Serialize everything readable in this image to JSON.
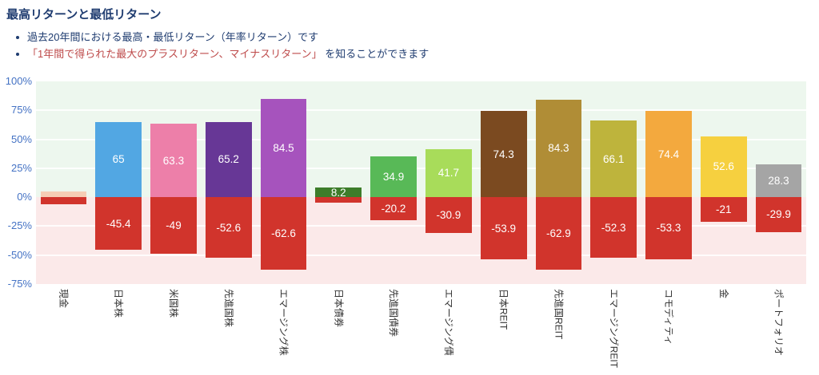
{
  "header": {
    "title": "最高リターンと最低リターン",
    "bullets": [
      {
        "text": "過去20年間における最高・最低リターン（年率リターン）です"
      },
      {
        "highlight": "「1年間で得られた最大のプラスリターン、マイナスリターン」",
        "rest": " を知ることができます"
      }
    ]
  },
  "colors": {
    "title": "#1f3c70",
    "bullet_text": "#1f3c70",
    "highlight_text": "#be4b4b",
    "axis_labels": "#4472c4",
    "x_labels": "#333333",
    "positive_background": "#edf7ee",
    "negative_background": "#fbe9e9",
    "negative_bar": "#d1342c"
  },
  "chart_data": {
    "type": "bar",
    "title": "最高リターンと最低リターン",
    "categories": [
      "現金",
      "日本株",
      "米国株",
      "先進国株",
      "エマージング株",
      "日本債券",
      "先進国債券",
      "エマージング債",
      "日本REIT",
      "先進国REIT",
      "エマージングREIT",
      "コモディティ",
      "金",
      "ポートフォリオ"
    ],
    "series": [
      {
        "name": "最高リターン",
        "values": [
          5,
          65,
          63.3,
          65.2,
          84.5,
          8.2,
          34.9,
          41.7,
          74.3,
          84.3,
          66.1,
          74.4,
          52.6,
          28.3
        ],
        "labels": [
          "",
          "65",
          "63.3",
          "65.2",
          "84.5",
          "8.2",
          "34.9",
          "41.7",
          "74.3",
          "84.3",
          "66.1",
          "74.4",
          "52.6",
          "28.3"
        ],
        "colors": [
          "#f6cdb5",
          "#52a7e3",
          "#ed7fa9",
          "#673796",
          "#a653bd",
          "#3d7d2a",
          "#58b957",
          "#a8dc5a",
          "#7b4a20",
          "#b08d36",
          "#beb43c",
          "#f3a93e",
          "#f6d03f",
          "#a5a5a5"
        ]
      },
      {
        "name": "最低リターン",
        "values": [
          -6,
          -45.4,
          -49,
          -52.6,
          -62.6,
          -5,
          -20.2,
          -30.9,
          -53.9,
          -62.9,
          -52.3,
          -53.3,
          -21,
          -29.9
        ],
        "labels": [
          "",
          "-45.4",
          "-49",
          "-52.6",
          "-62.6",
          "",
          "-20.2",
          "-30.9",
          "-53.9",
          "-62.9",
          "-52.3",
          "-53.3",
          "-21",
          "-29.9"
        ],
        "color": "#d1342c"
      }
    ],
    "xlabel": "",
    "ylabel": "",
    "ylim": [
      -75,
      100
    ],
    "y_ticks": [
      "100%",
      "75%",
      "50%",
      "25%",
      "0%",
      "-25%",
      "-50%",
      "-75%"
    ],
    "grid": true,
    "legend": "none"
  }
}
